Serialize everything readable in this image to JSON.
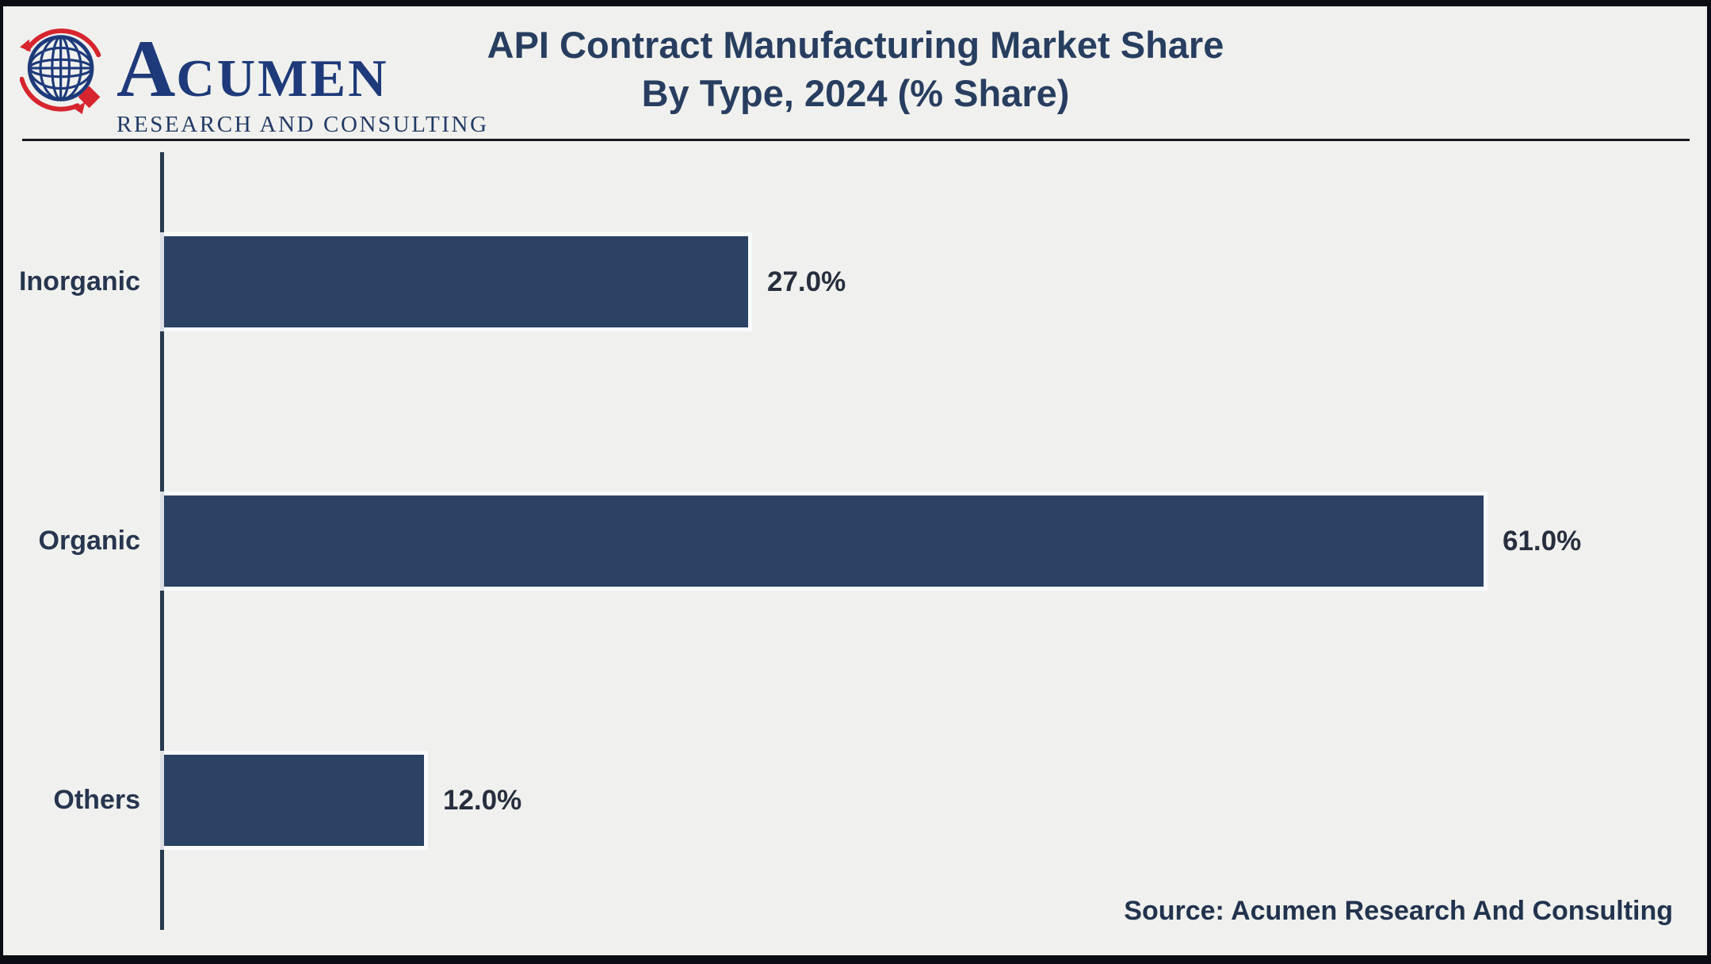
{
  "page": {
    "background": "#f0f1ee",
    "border_color": "#0b0d15"
  },
  "header": {
    "logo": {
      "icon": "globe-icon",
      "brand_initial": "A",
      "brand_rest": "CUMEN",
      "tagline": "RESEARCH AND CONSULTING",
      "brand_color": "#1e3a7a",
      "accent_color": "#d6252e"
    },
    "title_line1": "API Contract Manufacturing Market Share",
    "title_line2": "By Type, 2024 (% Share)"
  },
  "chart_data": {
    "type": "bar",
    "orientation": "horizontal",
    "title": "API Contract Manufacturing Market Share By Type, 2024 (% Share)",
    "categories": [
      "Inorganic",
      "Organic",
      "Others"
    ],
    "values": [
      27.0,
      61.0,
      12.0
    ],
    "value_labels": [
      "27.0%",
      "61.0%",
      "12.0%"
    ],
    "xlabel": "",
    "ylabel": "",
    "xlim": [
      0,
      70
    ],
    "grid": false,
    "legend": false,
    "bar_color": "#2b4264",
    "axis_color": "#283a4d",
    "category_label_color": "#27354f",
    "value_label_color": "#272f3e",
    "title_color": "#283e60"
  },
  "footer": {
    "source_label": "Source: Acumen Research And Consulting"
  }
}
